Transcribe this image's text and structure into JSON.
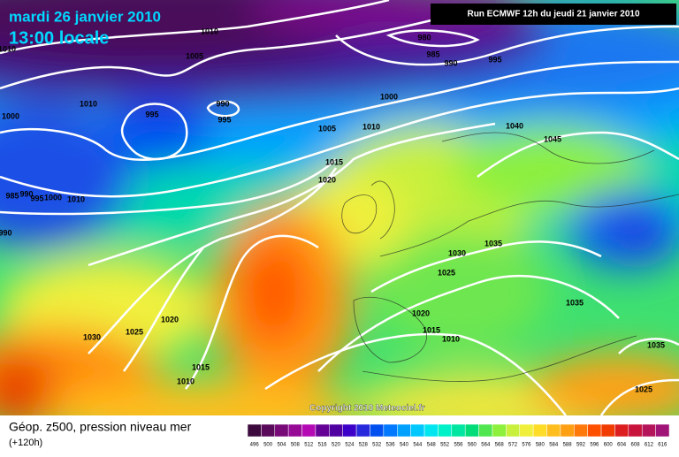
{
  "header": {
    "date": "mardi 26 janvier 2010",
    "time": "13:00 locale",
    "run": "Run ECMWF 12h du jeudi 21 janvier 2010"
  },
  "isobars": [
    "1010",
    "1010",
    "1005",
    "980",
    "985",
    "990",
    "995",
    "1010",
    "995",
    "990",
    "995",
    "1000",
    "1000",
    "1005",
    "1010",
    "1040",
    "1045",
    "1015",
    "1020",
    "985",
    "990",
    "995",
    "1000",
    "1010",
    "990",
    "1035",
    "1030",
    "1025",
    "1035",
    "1020",
    "1015",
    "1010",
    "1020",
    "1025",
    "1030",
    "1015",
    "1010",
    "1035",
    "1025"
  ],
  "copyright": "Copyright 2010 Meteociel.fr",
  "footer": {
    "title": "Géop. z500, pression niveau mer",
    "lead": "(+120h)"
  },
  "colorbar": {
    "levels": [
      "496",
      "500",
      "504",
      "508",
      "512",
      "516",
      "520",
      "524",
      "528",
      "532",
      "536",
      "540",
      "544",
      "548",
      "552",
      "556",
      "560",
      "564",
      "568",
      "572",
      "576",
      "580",
      "584",
      "588",
      "592",
      "596",
      "600",
      "604",
      "608",
      "612",
      "616"
    ],
    "colors": [
      "#3c0a3c",
      "#5a0a5a",
      "#780a78",
      "#960a96",
      "#b40ab4",
      "#640096",
      "#5000a0",
      "#3c00c8",
      "#2828dc",
      "#0050f0",
      "#0078ff",
      "#00a0ff",
      "#00c8ff",
      "#00e6f0",
      "#00f0c8",
      "#00e6a0",
      "#00dc78",
      "#50e650",
      "#8cf03c",
      "#c8f03c",
      "#f0f03c",
      "#ffdc28",
      "#ffbe1e",
      "#ffa014",
      "#ff780a",
      "#ff5000",
      "#f03c00",
      "#dc1e1e",
      "#c8143c",
      "#b4145a",
      "#a01478"
    ]
  }
}
